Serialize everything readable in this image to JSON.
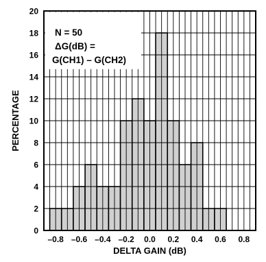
{
  "chart_data": {
    "type": "bar",
    "xlabel": "DELTA GAIN (dB)",
    "ylabel": "PERCENTAGE",
    "xlim": [
      -0.9,
      0.9
    ],
    "ylim": [
      0,
      20
    ],
    "x_ticks": [
      -0.8,
      -0.6,
      -0.4,
      -0.2,
      0.0,
      0.2,
      0.4,
      0.6,
      0.8
    ],
    "x_tick_labels": [
      "–0.8",
      "–0.6",
      "–0.4",
      "–0.2",
      "0.0",
      "0.2",
      "0.4",
      "0.6",
      "0.8"
    ],
    "y_ticks": [
      0,
      2,
      4,
      6,
      8,
      10,
      12,
      14,
      16,
      18,
      20
    ],
    "y_tick_labels": [
      "0",
      "2",
      "4",
      "6",
      "8",
      "10",
      "12",
      "14",
      "16",
      "18",
      "20"
    ],
    "bin_width": 0.1,
    "bins": [
      {
        "x0": -0.85,
        "x1": -0.75,
        "value": 2
      },
      {
        "x0": -0.75,
        "x1": -0.65,
        "value": 2
      },
      {
        "x0": -0.65,
        "x1": -0.55,
        "value": 4
      },
      {
        "x0": -0.55,
        "x1": -0.45,
        "value": 6
      },
      {
        "x0": -0.45,
        "x1": -0.35,
        "value": 4
      },
      {
        "x0": -0.35,
        "x1": -0.25,
        "value": 4
      },
      {
        "x0": -0.25,
        "x1": -0.15,
        "value": 10
      },
      {
        "x0": -0.15,
        "x1": -0.05,
        "value": 12
      },
      {
        "x0": -0.05,
        "x1": 0.05,
        "value": 10
      },
      {
        "x0": 0.05,
        "x1": 0.15,
        "value": 18
      },
      {
        "x0": 0.15,
        "x1": 0.25,
        "value": 10
      },
      {
        "x0": 0.25,
        "x1": 0.35,
        "value": 6
      },
      {
        "x0": 0.35,
        "x1": 0.45,
        "value": 8
      },
      {
        "x0": 0.45,
        "x1": 0.55,
        "value": 2
      },
      {
        "x0": 0.55,
        "x1": 0.65,
        "value": 2
      }
    ],
    "annotation": [
      "N = 50",
      "ΔG(dB) =",
      "G(CH1) – G(CH2)"
    ],
    "grid": true,
    "colors": {
      "bar_fill": "#d0d0d0",
      "bar_stroke": "#000000",
      "grid": "#000000"
    }
  }
}
